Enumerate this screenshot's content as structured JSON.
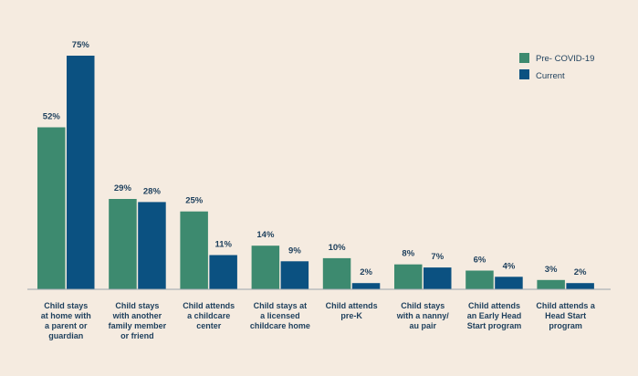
{
  "chart_data": {
    "type": "bar",
    "title": "",
    "xlabel": "",
    "ylabel": "",
    "ylim": [
      0,
      78
    ],
    "grid": false,
    "legend_position": "top-right",
    "value_suffix": "%",
    "categories": [
      [
        "Child stays",
        "at home with",
        "a parent or",
        "guardian"
      ],
      [
        "Child stays",
        "with another",
        "family member",
        "or friend"
      ],
      [
        "Child attends",
        "a childcare",
        "center"
      ],
      [
        "Child stays at",
        "a licensed",
        "childcare home"
      ],
      [
        "Child attends",
        "pre-K"
      ],
      [
        "Child stays",
        "with a nanny/",
        "au pair"
      ],
      [
        "Child attends",
        "an Early Head",
        "Start program"
      ],
      [
        "Child attends a",
        "Head Start",
        "program"
      ]
    ],
    "series": [
      {
        "name": "Pre- COVID-19",
        "color": "#3d8a6f",
        "values": [
          52,
          29,
          25,
          14,
          10,
          8,
          6,
          3
        ]
      },
      {
        "name": "Current",
        "color": "#0b5181",
        "values": [
          75,
          28,
          11,
          9,
          2,
          7,
          4,
          2
        ]
      }
    ]
  }
}
